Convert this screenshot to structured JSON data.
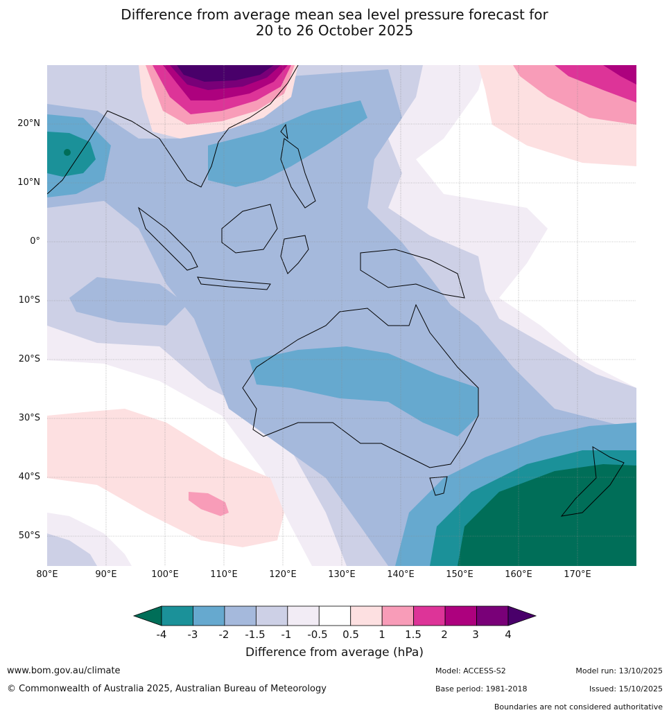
{
  "title": {
    "line1": "Difference from average mean sea level pressure forecast for",
    "line2": "20 to 26 October 2025"
  },
  "map": {
    "lat_labels": [
      "20°N",
      "10°N",
      "0°",
      "10°S",
      "20°S",
      "30°S",
      "40°S",
      "50°S"
    ],
    "lon_labels": [
      "80°E",
      "90°E",
      "100°E",
      "110°E",
      "120°E",
      "130°E",
      "140°E",
      "150°E",
      "160°E",
      "170°E"
    ],
    "extent": {
      "lon": [
        80,
        180
      ],
      "lat": [
        -55,
        30
      ]
    }
  },
  "colorbar": {
    "labels": [
      "-4",
      "-3",
      "-2",
      "-1.5",
      "-1",
      "-0.5",
      "0.5",
      "1",
      "1.5",
      "2",
      "3",
      "4"
    ],
    "colors": [
      "#006e58",
      "#1b9199",
      "#66a9cf",
      "#a5b9dc",
      "#cdd0e6",
      "#f2ecf5",
      "#ffffff",
      "#fde0e1",
      "#f89cb8",
      "#dd3498",
      "#ad017e",
      "#790078",
      "#49006a"
    ],
    "title": "Difference from average (hPa)"
  },
  "footer": {
    "website": "www.bom.gov.au/climate",
    "copyright": "© Commonwealth of Australia 2025, Australian Bureau of Meteorology",
    "model": "Model: ACCESS-S2",
    "base_period": "Base period: 1981-2018",
    "model_run": "Model run: 13/10/2025",
    "issued": "Issued: 15/10/2025",
    "disclaimer": "Boundaries are not considered authoritative"
  }
}
